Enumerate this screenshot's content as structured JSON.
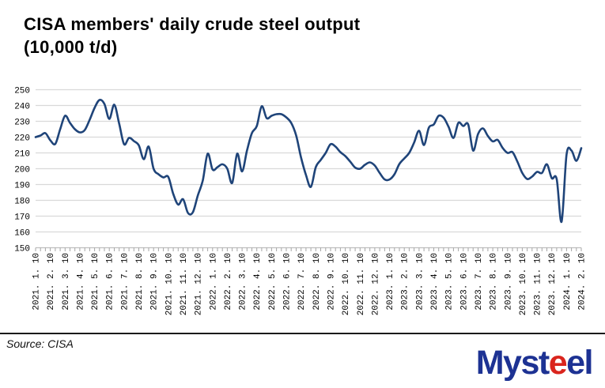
{
  "title": {
    "line1": "CISA members' daily crude steel output",
    "line2": "(10,000 t/d)"
  },
  "footer": {
    "source": "Source: CISA"
  },
  "logo": {
    "parts": [
      {
        "text": "Myst",
        "color": "#1d3293"
      },
      {
        "text": "e",
        "color": "#da251d"
      },
      {
        "text": "el",
        "color": "#1d3293"
      }
    ]
  },
  "colors": {
    "line": "#1f4479",
    "grid": "#d9d9d9",
    "axis": "#bfbfbf",
    "tick": "#a6a6a6",
    "label": "#000000"
  },
  "chart_data": {
    "type": "line",
    "title": "CISA members' daily crude steel output (10,000 t/d)",
    "ylabel": "10,000 t/d",
    "ylim": [
      150,
      250
    ],
    "yticks": [
      250,
      240,
      230,
      220,
      210,
      200,
      190,
      180,
      170,
      160,
      150
    ],
    "grid": true,
    "legend": "none",
    "smooth": true,
    "xtick_every": 3,
    "x": [
      "2021.1.10",
      "2021.1.20",
      "2021.1.31",
      "2021.2.10",
      "2021.2.20",
      "2021.2.28",
      "2021.3.10",
      "2021.3.20",
      "2021.3.31",
      "2021.4.10",
      "2021.4.20",
      "2021.4.30",
      "2021.5.10",
      "2021.5.20",
      "2021.5.31",
      "2021.6.10",
      "2021.6.20",
      "2021.6.30",
      "2021.7.10",
      "2021.7.20",
      "2021.7.31",
      "2021.8.10",
      "2021.8.20",
      "2021.8.31",
      "2021.9.10",
      "2021.9.20",
      "2021.9.30",
      "2021.10.10",
      "2021.10.20",
      "2021.10.31",
      "2021.11.10",
      "2021.11.20",
      "2021.11.30",
      "2021.12.10",
      "2021.12.20",
      "2021.12.31",
      "2022.1.10",
      "2022.1.20",
      "2022.1.31",
      "2022.2.10",
      "2022.2.20",
      "2022.2.28",
      "2022.3.10",
      "2022.3.20",
      "2022.3.31",
      "2022.4.10",
      "2022.4.20",
      "2022.4.30",
      "2022.5.10",
      "2022.5.20",
      "2022.5.31",
      "2022.6.10",
      "2022.6.20",
      "2022.6.30",
      "2022.7.10",
      "2022.7.20",
      "2022.7.31",
      "2022.8.10",
      "2022.8.20",
      "2022.8.31",
      "2022.9.10",
      "2022.9.20",
      "2022.9.30",
      "2022.10.10",
      "2022.10.20",
      "2022.10.31",
      "2022.11.10",
      "2022.11.20",
      "2022.11.30",
      "2022.12.10",
      "2022.12.20",
      "2022.12.31",
      "2023.1.10",
      "2023.1.20",
      "2023.1.31",
      "2023.2.10",
      "2023.2.20",
      "2023.2.28",
      "2023.3.10",
      "2023.3.20",
      "2023.3.31",
      "2023.4.10",
      "2023.4.20",
      "2023.4.30",
      "2023.5.10",
      "2023.5.20",
      "2023.5.31",
      "2023.6.10",
      "2023.6.20",
      "2023.6.30",
      "2023.7.10",
      "2023.7.20",
      "2023.7.31",
      "2023.8.10",
      "2023.8.20",
      "2023.8.31",
      "2023.9.10",
      "2023.9.20",
      "2023.9.30",
      "2023.10.10",
      "2023.10.20",
      "2023.10.31",
      "2023.11.10",
      "2023.11.20",
      "2023.11.30",
      "2023.12.10",
      "2023.12.20",
      "2023.12.31",
      "2024.1.10",
      "2024.1.20",
      "2024.1.31",
      "2024.2.10"
    ],
    "values": [
      220,
      221,
      222.5,
      218,
      215.7,
      225,
      233.5,
      229,
      225,
      223,
      224.5,
      231,
      238.5,
      243.5,
      241,
      231.5,
      240.5,
      228.5,
      215.5,
      219.5,
      217.5,
      214.8,
      206,
      214,
      200,
      196.5,
      194.5,
      194.8,
      184,
      177.3,
      180.7,
      172,
      172.5,
      183,
      192.5,
      209.5,
      199.5,
      201,
      202.8,
      200,
      191,
      209.5,
      198.3,
      211.5,
      222.5,
      227,
      239.5,
      232,
      233.5,
      234.5,
      234.5,
      232.5,
      229,
      221,
      207,
      196,
      188.5,
      201,
      205.5,
      210,
      215.5,
      214,
      210.5,
      208,
      204.5,
      200.7,
      200,
      202.5,
      204,
      202,
      197.3,
      193.2,
      193.2,
      196.5,
      203,
      206.5,
      210,
      216.5,
      224,
      215,
      226,
      228,
      233.5,
      232.3,
      226.5,
      219.5,
      229,
      227,
      228,
      211.5,
      222,
      225.5,
      220.7,
      217.3,
      218.2,
      213.2,
      210,
      210.5,
      204.5,
      197.3,
      193.5,
      195,
      198,
      197.3,
      202.8,
      194,
      193.5,
      166.5,
      209,
      211.5,
      205,
      213
    ]
  }
}
